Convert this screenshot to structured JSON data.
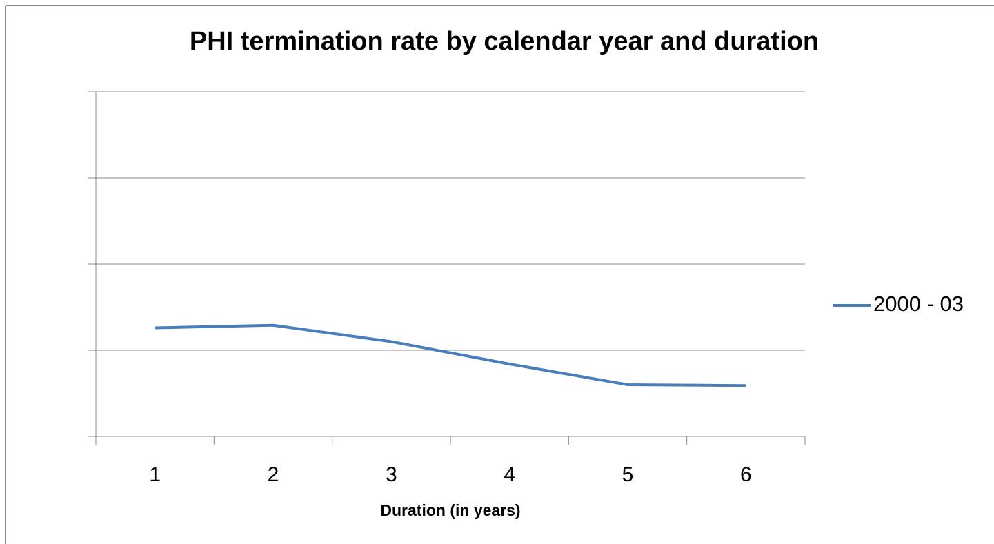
{
  "chart_data": {
    "type": "line",
    "title": "PHI termination rate by calendar year and duration",
    "x_label": "Duration (in years)",
    "categories": [
      "1",
      "2",
      "3",
      "4",
      "5",
      "6"
    ],
    "series": [
      {
        "name": "2000 - 03",
        "color": "#4a7ebb",
        "values": [
          1.26,
          1.29,
          1.1,
          0.84,
          0.6,
          0.59
        ]
      }
    ],
    "ylim": [
      0,
      4
    ],
    "yticks": [
      0,
      1,
      2,
      3,
      4
    ],
    "grid": true,
    "legend": "right"
  }
}
